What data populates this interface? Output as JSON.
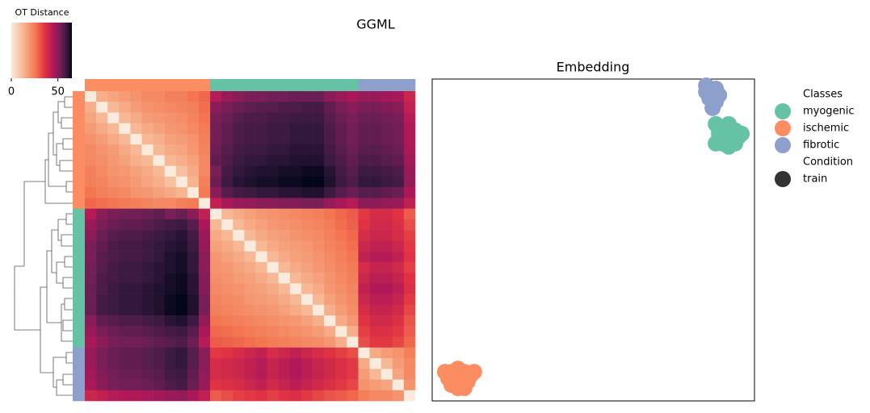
{
  "figure_title": "GGML",
  "chart_data": [
    {
      "type": "heatmap",
      "colorbar_label": "OT Distance",
      "zlim": [
        0,
        65
      ],
      "colorbar_ticks": [
        0,
        50
      ],
      "cmap": "rocket_r",
      "row_colors": [
        "#fc8d62",
        "#fc8d62",
        "#fc8d62",
        "#fc8d62",
        "#fc8d62",
        "#fc8d62",
        "#fc8d62",
        "#fc8d62",
        "#fc8d62",
        "#fc8d62",
        "#fc8d62",
        "#66c2a5",
        "#66c2a5",
        "#66c2a5",
        "#66c2a5",
        "#66c2a5",
        "#66c2a5",
        "#66c2a5",
        "#66c2a5",
        "#66c2a5",
        "#66c2a5",
        "#66c2a5",
        "#66c2a5",
        "#66c2a5",
        "#8da0cb",
        "#8da0cb",
        "#8da0cb",
        "#8da0cb",
        "#8da0cb"
      ],
      "matrix": [
        [
          0,
          14,
          16,
          18,
          20,
          22,
          22,
          24,
          24,
          26,
          28,
          44,
          48,
          50,
          52,
          52,
          53,
          53,
          54,
          54,
          54,
          50,
          48,
          46,
          48,
          48,
          47,
          46,
          40
        ],
        [
          14,
          0,
          12,
          15,
          18,
          20,
          21,
          22,
          23,
          24,
          27,
          50,
          52,
          54,
          55,
          56,
          56,
          57,
          57,
          58,
          58,
          55,
          52,
          50,
          52,
          52,
          51,
          50,
          42
        ],
        [
          16,
          12,
          0,
          12,
          15,
          18,
          19,
          20,
          21,
          23,
          26,
          52,
          54,
          56,
          57,
          57,
          58,
          58,
          59,
          59,
          59,
          56,
          54,
          52,
          54,
          54,
          53,
          52,
          44
        ],
        [
          18,
          15,
          12,
          0,
          12,
          15,
          17,
          19,
          20,
          22,
          25,
          53,
          55,
          57,
          58,
          58,
          59,
          59,
          60,
          60,
          60,
          57,
          55,
          53,
          55,
          55,
          54,
          53,
          45
        ],
        [
          20,
          18,
          15,
          12,
          0,
          12,
          14,
          17,
          18,
          20,
          24,
          53,
          55,
          57,
          58,
          58,
          59,
          59,
          60,
          60,
          60,
          57,
          55,
          53,
          55,
          55,
          54,
          53,
          45
        ],
        [
          22,
          20,
          18,
          15,
          12,
          0,
          12,
          15,
          16,
          19,
          23,
          54,
          56,
          58,
          59,
          59,
          60,
          60,
          61,
          61,
          61,
          58,
          56,
          54,
          56,
          56,
          55,
          54,
          46
        ],
        [
          22,
          21,
          19,
          17,
          14,
          12,
          0,
          12,
          14,
          17,
          22,
          55,
          57,
          59,
          60,
          60,
          61,
          61,
          62,
          62,
          62,
          59,
          57,
          55,
          57,
          57,
          56,
          55,
          47
        ],
        [
          24,
          22,
          20,
          19,
          17,
          15,
          12,
          0,
          10,
          15,
          22,
          52,
          58,
          60,
          61,
          62,
          62,
          63,
          63,
          64,
          64,
          61,
          58,
          56,
          59,
          59,
          58,
          57,
          48
        ],
        [
          24,
          23,
          21,
          20,
          18,
          16,
          14,
          10,
          0,
          13,
          24,
          54,
          59,
          61,
          62,
          63,
          63,
          64,
          64,
          65,
          65,
          62,
          59,
          57,
          60,
          60,
          59,
          58,
          49
        ],
        [
          26,
          24,
          23,
          22,
          20,
          19,
          17,
          15,
          13,
          0,
          25,
          50,
          56,
          58,
          59,
          60,
          60,
          61,
          61,
          62,
          62,
          59,
          56,
          54,
          56,
          56,
          55,
          54,
          46
        ],
        [
          28,
          27,
          26,
          25,
          24,
          23,
          22,
          22,
          24,
          25,
          0,
          42,
          46,
          48,
          49,
          50,
          50,
          51,
          51,
          52,
          52,
          49,
          46,
          44,
          50,
          50,
          49,
          48,
          42
        ],
        [
          44,
          50,
          52,
          53,
          53,
          54,
          55,
          52,
          54,
          50,
          42,
          0,
          12,
          15,
          17,
          19,
          20,
          21,
          22,
          23,
          24,
          26,
          28,
          30,
          35,
          38,
          38,
          36,
          30
        ],
        [
          48,
          52,
          54,
          55,
          55,
          56,
          57,
          58,
          59,
          56,
          46,
          12,
          0,
          12,
          15,
          17,
          19,
          20,
          21,
          22,
          23,
          25,
          27,
          29,
          36,
          39,
          39,
          37,
          32
        ],
        [
          50,
          54,
          56,
          57,
          57,
          58,
          59,
          60,
          61,
          58,
          48,
          15,
          12,
          0,
          12,
          15,
          17,
          18,
          20,
          21,
          22,
          24,
          26,
          28,
          38,
          40,
          40,
          38,
          34
        ],
        [
          52,
          55,
          57,
          58,
          58,
          59,
          60,
          61,
          62,
          59,
          49,
          17,
          15,
          12,
          0,
          12,
          15,
          17,
          18,
          19,
          21,
          23,
          25,
          27,
          40,
          42,
          42,
          40,
          35
        ],
        [
          52,
          56,
          57,
          58,
          58,
          59,
          60,
          62,
          63,
          60,
          50,
          19,
          17,
          15,
          12,
          0,
          12,
          15,
          17,
          18,
          20,
          22,
          24,
          26,
          42,
          44,
          44,
          42,
          36
        ],
        [
          53,
          56,
          58,
          59,
          59,
          60,
          61,
          62,
          63,
          60,
          50,
          20,
          19,
          17,
          15,
          12,
          0,
          12,
          15,
          17,
          19,
          21,
          23,
          25,
          38,
          41,
          41,
          39,
          34
        ],
        [
          53,
          57,
          58,
          59,
          59,
          60,
          61,
          63,
          64,
          61,
          51,
          21,
          20,
          18,
          17,
          15,
          12,
          0,
          12,
          15,
          17,
          20,
          22,
          24,
          40,
          43,
          43,
          41,
          36
        ],
        [
          54,
          57,
          59,
          60,
          60,
          61,
          62,
          63,
          64,
          61,
          51,
          22,
          21,
          20,
          18,
          17,
          15,
          12,
          0,
          12,
          15,
          19,
          21,
          23,
          42,
          45,
          45,
          43,
          37
        ],
        [
          54,
          58,
          59,
          60,
          60,
          61,
          62,
          64,
          65,
          62,
          52,
          23,
          22,
          21,
          19,
          18,
          17,
          15,
          12,
          0,
          12,
          17,
          20,
          22,
          40,
          43,
          43,
          41,
          35
        ],
        [
          54,
          58,
          59,
          60,
          60,
          61,
          62,
          64,
          65,
          62,
          52,
          24,
          23,
          22,
          21,
          20,
          19,
          17,
          15,
          12,
          0,
          14,
          18,
          21,
          38,
          41,
          41,
          39,
          33
        ],
        [
          50,
          55,
          56,
          57,
          57,
          58,
          59,
          61,
          62,
          59,
          49,
          26,
          25,
          24,
          23,
          22,
          21,
          20,
          19,
          17,
          14,
          0,
          15,
          19,
          36,
          39,
          39,
          37,
          31
        ],
        [
          48,
          52,
          54,
          55,
          55,
          56,
          57,
          58,
          59,
          56,
          46,
          28,
          27,
          26,
          25,
          24,
          23,
          22,
          21,
          20,
          18,
          15,
          0,
          14,
          34,
          37,
          37,
          35,
          30
        ],
        [
          46,
          50,
          52,
          53,
          53,
          54,
          55,
          56,
          57,
          54,
          44,
          30,
          29,
          28,
          27,
          26,
          25,
          24,
          23,
          22,
          21,
          19,
          14,
          0,
          32,
          35,
          35,
          33,
          28
        ],
        [
          48,
          52,
          54,
          55,
          55,
          56,
          57,
          59,
          60,
          56,
          50,
          35,
          36,
          38,
          40,
          42,
          38,
          40,
          42,
          40,
          38,
          36,
          34,
          32,
          0,
          15,
          18,
          20,
          24
        ],
        [
          48,
          52,
          54,
          55,
          55,
          56,
          57,
          59,
          60,
          56,
          50,
          38,
          39,
          40,
          42,
          44,
          41,
          43,
          45,
          43,
          41,
          39,
          37,
          35,
          15,
          0,
          12,
          18,
          22
        ],
        [
          47,
          51,
          53,
          54,
          54,
          55,
          56,
          58,
          59,
          55,
          49,
          38,
          39,
          40,
          42,
          44,
          41,
          43,
          45,
          43,
          41,
          39,
          37,
          35,
          18,
          12,
          0,
          16,
          22
        ],
        [
          46,
          50,
          52,
          53,
          53,
          54,
          55,
          57,
          58,
          54,
          48,
          36,
          37,
          38,
          40,
          42,
          39,
          41,
          43,
          41,
          39,
          37,
          35,
          33,
          20,
          18,
          16,
          0,
          20
        ],
        [
          40,
          42,
          44,
          45,
          45,
          46,
          47,
          48,
          49,
          46,
          42,
          30,
          32,
          34,
          35,
          36,
          34,
          36,
          37,
          35,
          33,
          31,
          30,
          28,
          24,
          22,
          22,
          20,
          0
        ]
      ]
    },
    {
      "type": "scatter",
      "title": "Embedding",
      "xlim": [
        0,
        100
      ],
      "ylim": [
        0,
        100
      ],
      "legend_title": "Classes",
      "condition_title": "Condition",
      "conditions": [
        {
          "name": "train",
          "color": "#333333"
        }
      ],
      "series": [
        {
          "name": "myogenic",
          "color": "#66c2a5",
          "x": [
            88,
            90,
            92,
            94,
            96,
            89,
            91,
            93,
            95,
            88,
            90,
            92,
            94,
            89,
            93
          ],
          "y": [
            86,
            85,
            86,
            84,
            83,
            83,
            82,
            81,
            82,
            80,
            80,
            79,
            80,
            84,
            83
          ]
        },
        {
          "name": "ischemic",
          "color": "#fc8d62",
          "x": [
            4,
            6,
            8,
            10,
            12,
            5,
            7,
            9,
            11,
            13,
            8,
            10,
            6
          ],
          "y": [
            9,
            9,
            10,
            9,
            8,
            7,
            6,
            7,
            6,
            9,
            4,
            4,
            5
          ]
        },
        {
          "name": "fibrotic",
          "color": "#8da0cb",
          "x": [
            85,
            87,
            89,
            86,
            88,
            87,
            85,
            88
          ],
          "y": [
            98,
            96,
            95,
            94,
            93,
            91,
            96,
            97
          ]
        }
      ]
    }
  ]
}
